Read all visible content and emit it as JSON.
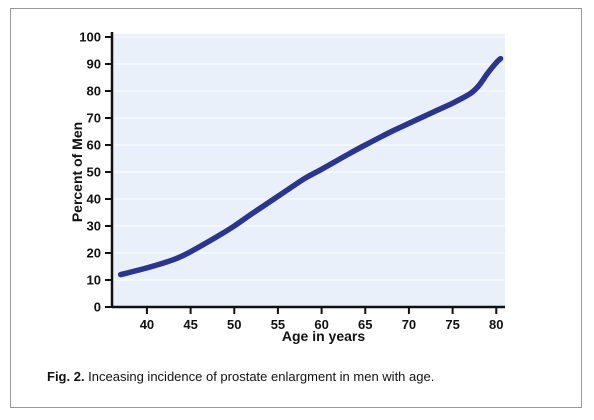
{
  "figure": {
    "caption_label": "Fig. 2.",
    "caption_text": " Inceasing incidence of prostate enlargment in men with age."
  },
  "colors": {
    "plot_background": "#e9f0fa",
    "gridline": "#ffffff",
    "curve": "#2a3590",
    "axis": "#111111"
  },
  "chart_data": {
    "type": "line",
    "title": "",
    "xlabel": "Age in years",
    "ylabel": "Percent of Men",
    "xlim": [
      36,
      81
    ],
    "ylim": [
      0,
      100
    ],
    "x_ticks": [
      40,
      45,
      50,
      55,
      60,
      65,
      70,
      75,
      80
    ],
    "y_ticks": [
      0,
      10,
      20,
      30,
      40,
      50,
      60,
      70,
      80,
      90,
      100
    ],
    "grid": true,
    "series": [
      {
        "x": [
          37,
          40,
          43,
          45,
          48,
          50,
          52,
          55,
          58,
          60,
          63,
          65,
          68,
          70,
          73,
          75,
          77,
          78,
          79,
          80,
          80.5
        ],
        "y": [
          12,
          14.5,
          17.5,
          20.5,
          26,
          30,
          34.5,
          41,
          47.5,
          51,
          56.5,
          60,
          65,
          68,
          72.5,
          75.5,
          79,
          82,
          86.5,
          90.5,
          92
        ]
      }
    ]
  }
}
